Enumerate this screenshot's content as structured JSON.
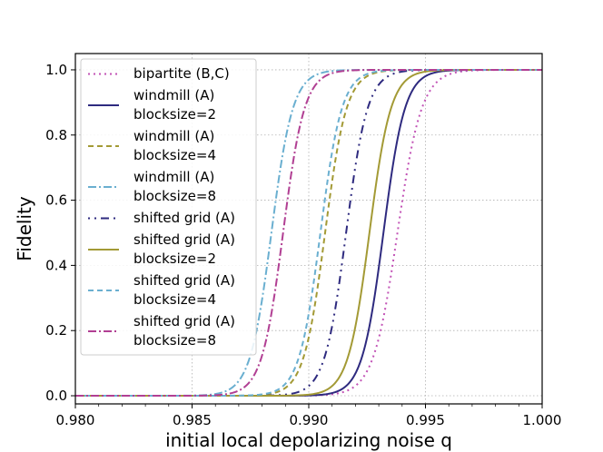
{
  "chart_data": {
    "type": "line",
    "title": "",
    "xlabel": "initial local depolarizing noise q",
    "ylabel": "Fidelity",
    "xlim": [
      0.98,
      1.0
    ],
    "ylim": [
      -0.025,
      1.05
    ],
    "xticks": [
      "0.980",
      "0.985",
      "0.990",
      "0.995",
      "1.000"
    ],
    "xtick_values": [
      0.98,
      0.985,
      0.99,
      0.995,
      1.0
    ],
    "yticks": [
      "0.0",
      "0.2",
      "0.4",
      "0.6",
      "0.8",
      "1.0"
    ],
    "ytick_values": [
      0.0,
      0.2,
      0.4,
      0.6,
      0.8,
      1.0
    ],
    "grid": true,
    "legend_position": "upper-left",
    "series": [
      {
        "name": "bipartite (B,C)",
        "label_lines": [
          "bipartite (B,C)"
        ],
        "color": "#c253b6",
        "dash": "2,4",
        "midpoint_q": 0.9938,
        "width_q": 0.00052
      },
      {
        "name": "windmill (A) blocksize=2",
        "label_lines": [
          "windmill (A)",
          "blocksize=2"
        ],
        "color": "#2e2a7f",
        "dash": "",
        "midpoint_q": 0.9932,
        "width_q": 0.00046
      },
      {
        "name": "windmill (A) blocksize=4",
        "label_lines": [
          "windmill (A)",
          "blocksize=4"
        ],
        "color": "#a39a35",
        "dash": "6,4",
        "midpoint_q": 0.9907,
        "width_q": 0.00046
      },
      {
        "name": "windmill (A) blocksize=8",
        "label_lines": [
          "windmill (A)",
          "blocksize=8"
        ],
        "color": "#6aafd0",
        "dash": "9,3,2,3",
        "midpoint_q": 0.9884,
        "width_q": 0.00046
      },
      {
        "name": "shifted grid (A)",
        "label_lines": [
          "shifted grid (A)"
        ],
        "color": "#2e2a7f",
        "dash": "2,5,2,5,9,5",
        "midpoint_q": 0.9916,
        "width_q": 0.00046
      },
      {
        "name": "shifted grid (A) blocksize=2",
        "label_lines": [
          "shifted grid (A)",
          "blocksize=2"
        ],
        "color": "#a39a35",
        "dash": "",
        "midpoint_q": 0.9926,
        "width_q": 0.00046
      },
      {
        "name": "shifted grid (A) blocksize=4",
        "label_lines": [
          "shifted grid (A)",
          "blocksize=4"
        ],
        "color": "#6aafd0",
        "dash": "6,4",
        "midpoint_q": 0.9905,
        "width_q": 0.00046
      },
      {
        "name": "shifted grid (A) blocksize=8",
        "label_lines": [
          "shifted grid (A)",
          "blocksize=8"
        ],
        "color": "#b13f93",
        "dash": "9,3,2,3",
        "midpoint_q": 0.9889,
        "width_q": 0.00046
      }
    ]
  }
}
